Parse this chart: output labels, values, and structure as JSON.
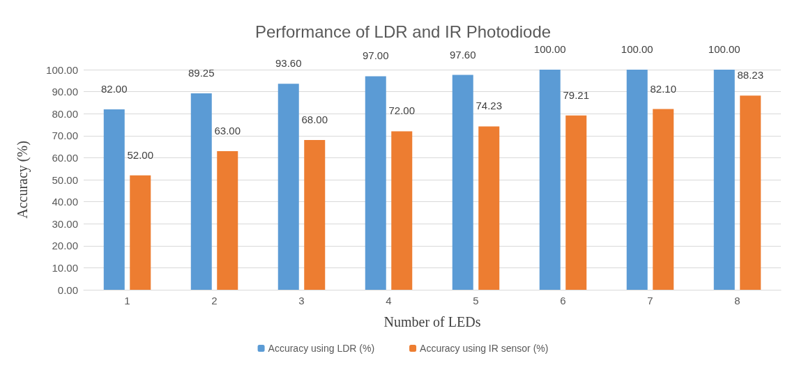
{
  "chart_data": {
    "type": "bar",
    "title": "Performance of LDR and IR Photodiode",
    "xlabel": "Number of LEDs",
    "ylabel": "Accuracy (%)",
    "categories": [
      "1",
      "2",
      "3",
      "4",
      "5",
      "6",
      "7",
      "8"
    ],
    "series": [
      {
        "name": "Accuracy using LDR (%)",
        "color": "#5b9bd5",
        "values": [
          82,
          89.25,
          93.6,
          97,
          97.6,
          100,
          100,
          100
        ],
        "value_labels": [
          "82.00",
          "89.25",
          "93.60",
          "97.00",
          "97.60",
          "100.00",
          "100.00",
          "100.00"
        ]
      },
      {
        "name": "Accuracy using IR sensor (%)",
        "color": "#ed7d31",
        "values": [
          52,
          63,
          68,
          72,
          74.23,
          79.21,
          82.1,
          88.23
        ],
        "value_labels": [
          "52.00",
          "63.00",
          "68.00",
          "72.00",
          "74.23",
          "79.21",
          "82.10",
          "88.23"
        ]
      }
    ],
    "ylim": [
      0,
      100
    ],
    "yticks": [
      {
        "value": 0,
        "label": "0.00"
      },
      {
        "value": 10,
        "label": "10.00"
      },
      {
        "value": 20,
        "label": "20.00"
      },
      {
        "value": 30,
        "label": "30.00"
      },
      {
        "value": 40,
        "label": "40.00"
      },
      {
        "value": 50,
        "label": "50.00"
      },
      {
        "value": 60,
        "label": "60.00"
      },
      {
        "value": 70,
        "label": "70.00"
      },
      {
        "value": 80,
        "label": "80.00"
      },
      {
        "value": 90,
        "label": "90.00"
      },
      {
        "value": 100,
        "label": "100.00"
      }
    ],
    "grid": "y",
    "legend": "bottom"
  }
}
